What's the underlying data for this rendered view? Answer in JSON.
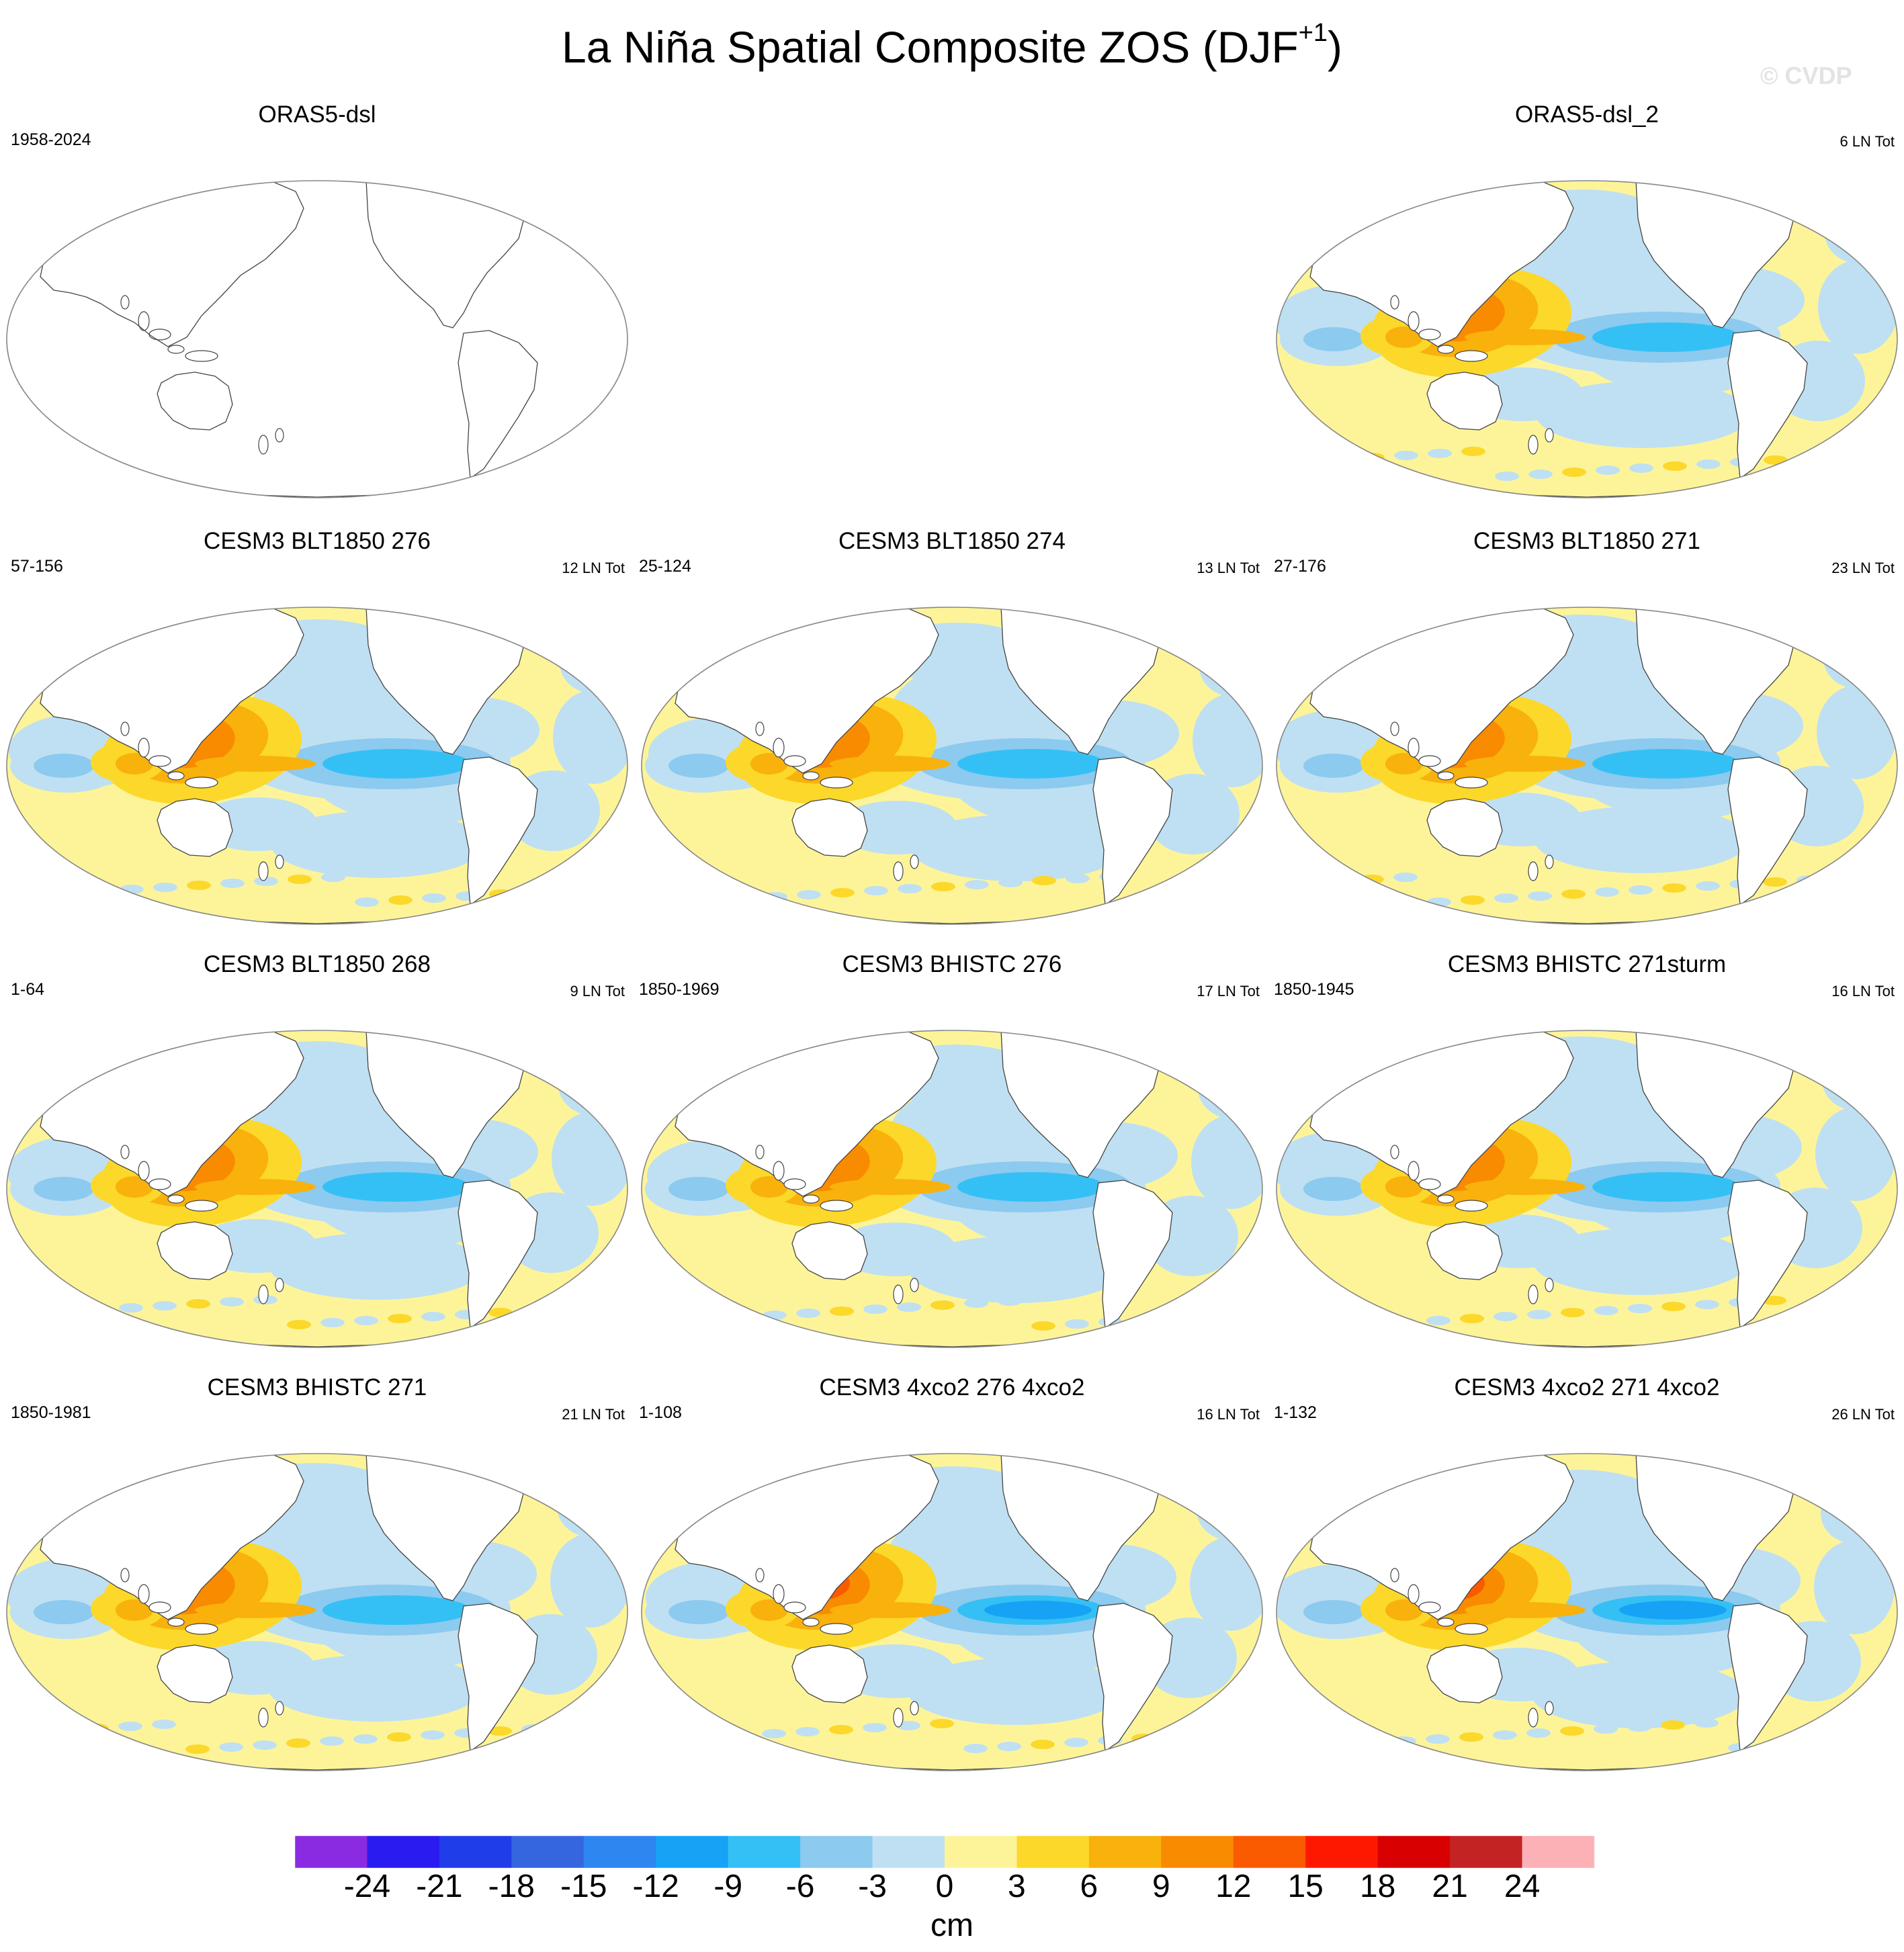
{
  "title": {
    "main": "La Niña Spatial Composite ZOS (DJF",
    "sup": "+1",
    "close": ")"
  },
  "copyright": "© CVDP",
  "panels": [
    {
      "title": "ORAS5-dsl",
      "left": "1958-2024",
      "right": "",
      "empty": true,
      "pattern": 0
    },
    {
      "title": "ORAS5-dsl_2",
      "left": "",
      "right": "6 LN Tot",
      "empty": false,
      "pattern": 1
    },
    {
      "title": "CESM3 BLT1850 276",
      "left": "57-156",
      "right": "12 LN Tot",
      "empty": false,
      "pattern": 2
    },
    {
      "title": "CESM3 BLT1850 274",
      "left": "25-124",
      "right": "13 LN Tot",
      "empty": false,
      "pattern": 3
    },
    {
      "title": "CESM3 BLT1850 271",
      "left": "27-176",
      "right": "23 LN Tot",
      "empty": false,
      "pattern": 4
    },
    {
      "title": "CESM3 BLT1850 268",
      "left": "1-64",
      "right": "9 LN Tot",
      "empty": false,
      "pattern": 5
    },
    {
      "title": "CESM3 BHISTC 276",
      "left": "1850-1969",
      "right": "17 LN Tot",
      "empty": false,
      "pattern": 6
    },
    {
      "title": "CESM3 BHISTC 271sturm",
      "left": "1850-1945",
      "right": "16 LN Tot",
      "empty": false,
      "pattern": 7
    },
    {
      "title": "CESM3 BHISTC 271",
      "left": "1850-1981",
      "right": "21 LN Tot",
      "empty": false,
      "pattern": 8
    },
    {
      "title": "CESM3 4xco2 276 4xco2",
      "left": "1-108",
      "right": "16 LN Tot",
      "empty": false,
      "pattern": 9
    },
    {
      "title": "CESM3 4xco2 271 4xco2",
      "left": "1-132",
      "right": "26 LN Tot",
      "empty": false,
      "pattern": 10
    }
  ],
  "colorbar": {
    "unit": "cm",
    "labels": [
      "-24",
      "-21",
      "-18",
      "-15",
      "-12",
      "-9",
      "-6",
      "-3",
      "0",
      "3",
      "6",
      "9",
      "12",
      "15",
      "18",
      "21",
      "24"
    ],
    "colors": [
      "#8a2be2",
      "#2a1bf0",
      "#1f3de8",
      "#3566e0",
      "#2e86f0",
      "#16a2f5",
      "#35c0f5",
      "#8ccaef",
      "#bfe0f2",
      "#fdf49a",
      "#fbd82a",
      "#f9b10c",
      "#f98b00",
      "#fa5a00",
      "#ff1800",
      "#d80000",
      "#c42323",
      "#fbb1b6"
    ]
  }
}
